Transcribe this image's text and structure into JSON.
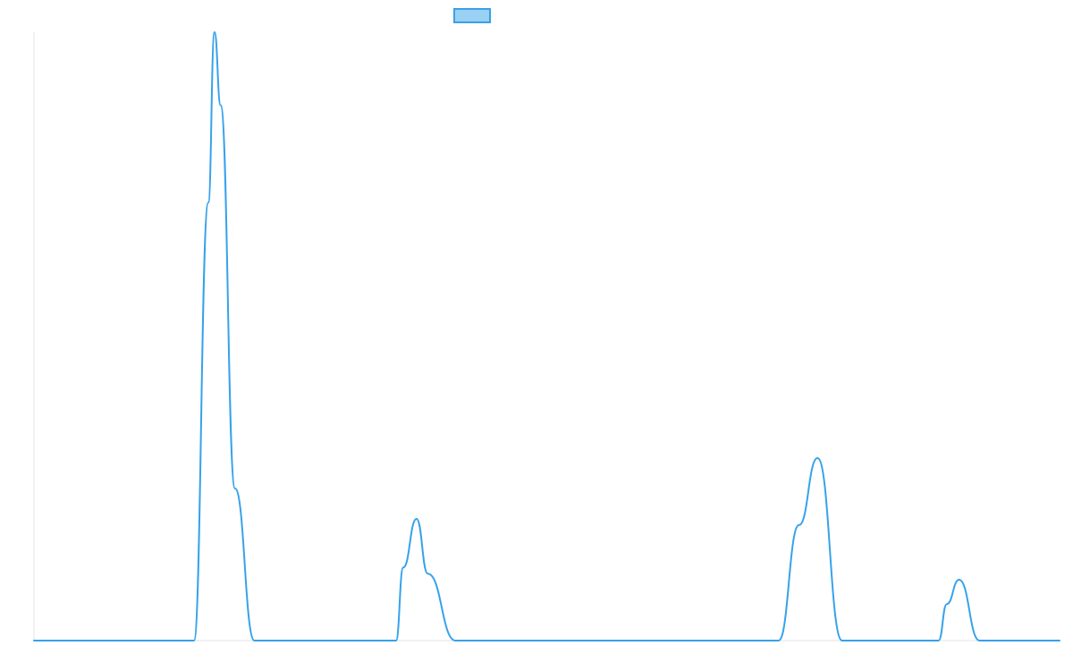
{
  "chart_data": {
    "type": "line",
    "title": "",
    "xlabel": "",
    "ylabel": "",
    "grid": false,
    "legend": {
      "placement": "top-center",
      "entries": [
        {
          "label": "",
          "color": "#36a2eb",
          "fill": "#99d0f3"
        }
      ]
    },
    "x": [
      0,
      0.049,
      0.098,
      0.147,
      0.196,
      0.245,
      0.294,
      0.343,
      0.392,
      0.441,
      0.49,
      0.539,
      0.588,
      0.637,
      0.686,
      0.735,
      0.784,
      0.833,
      0.882,
      0.931,
      0.98,
      1.0
    ],
    "series": [
      {
        "name": "",
        "color": "#36a2eb",
        "points": [
          [
            0,
            0
          ],
          [
            0.156,
            0
          ],
          [
            0.17,
            0.72
          ],
          [
            0.176,
            1.0
          ],
          [
            0.182,
            0.88
          ],
          [
            0.196,
            0.25
          ],
          [
            0.215,
            0
          ],
          [
            0.353,
            0
          ],
          [
            0.36,
            0.12
          ],
          [
            0.373,
            0.2
          ],
          [
            0.384,
            0.11
          ],
          [
            0.411,
            0
          ],
          [
            0.726,
            0
          ],
          [
            0.746,
            0.19
          ],
          [
            0.764,
            0.3
          ],
          [
            0.788,
            0
          ],
          [
            0.882,
            0
          ],
          [
            0.89,
            0.06
          ],
          [
            0.902,
            0.1
          ],
          [
            0.922,
            0
          ],
          [
            1.0,
            0
          ]
        ]
      }
    ],
    "xlim": [
      0,
      1
    ],
    "ylim": [
      0,
      1
    ]
  }
}
